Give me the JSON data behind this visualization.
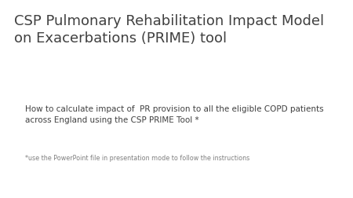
{
  "background_color": "#ffffff",
  "title_line1": "CSP Pulmonary Rehabilitation Impact Model",
  "title_line2": "on Exacerbations (PRIME) tool",
  "title_color": "#404040",
  "title_fontsize": 13,
  "body_text": "How to calculate impact of  PR provision to all the eligible COPD patients\nacross England using the CSP PRIME Tool *",
  "body_color": "#404040",
  "body_fontsize": 7.5,
  "footnote_text": "*use the PowerPoint file in presentation mode to follow the instructions",
  "footnote_color": "#808080",
  "footnote_fontsize": 5.8
}
